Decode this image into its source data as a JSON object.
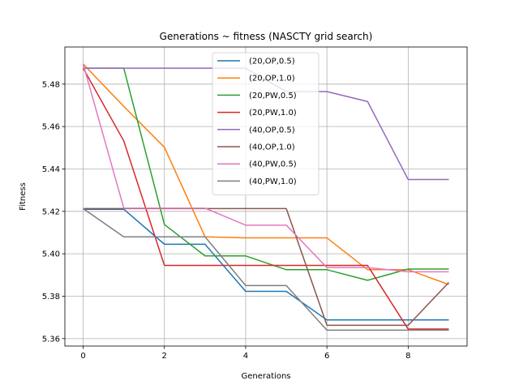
{
  "chart_data": {
    "type": "line",
    "title": "Generations ~ fitness (NASCTY grid search)",
    "xlabel": "Generations",
    "ylabel": "Fitness",
    "xlim": [
      -0.45,
      9.45
    ],
    "ylim": [
      5.3565,
      5.4975
    ],
    "xticks": [
      0,
      2,
      4,
      6,
      8
    ],
    "yticks": [
      5.36,
      5.38,
      5.4,
      5.42,
      5.44,
      5.46,
      5.48
    ],
    "ytick_labels": [
      "5.36",
      "5.38",
      "5.40",
      "5.42",
      "5.44",
      "5.46",
      "5.48"
    ],
    "grid": true,
    "legend_position": "top-center",
    "x": [
      0,
      1,
      2,
      3,
      4,
      5,
      6,
      7,
      8,
      9
    ],
    "series": [
      {
        "name": "(20,OP,0.5)",
        "color": "#1f77b4",
        "values": [
          5.421,
          5.421,
          5.4045,
          5.4045,
          5.3823,
          5.3823,
          5.3688,
          5.3688,
          5.3688,
          5.3688
        ]
      },
      {
        "name": "(20,OP,1.0)",
        "color": "#ff7f0e",
        "values": [
          5.4895,
          5.4695,
          5.4502,
          5.408,
          5.4075,
          5.4075,
          5.4075,
          5.3925,
          5.3925,
          5.3855
        ]
      },
      {
        "name": "(20,PW,0.5)",
        "color": "#2ca02c",
        "values": [
          5.4875,
          5.4875,
          5.4138,
          5.399,
          5.399,
          5.3925,
          5.3925,
          5.3875,
          5.3928,
          5.3928
        ]
      },
      {
        "name": "(20,PW,1.0)",
        "color": "#d62728",
        "values": [
          5.4875,
          5.4532,
          5.3945,
          5.3945,
          5.3945,
          5.3945,
          5.3945,
          5.3945,
          5.3645,
          5.3645
        ]
      },
      {
        "name": "(40,OP,0.5)",
        "color": "#9467bd",
        "values": [
          5.4875,
          5.4875,
          5.4875,
          5.4875,
          5.4875,
          5.4765,
          5.4765,
          5.4718,
          5.435,
          5.435
        ]
      },
      {
        "name": "(40,OP,1.0)",
        "color": "#8c564b",
        "values": [
          5.4213,
          5.4213,
          5.4213,
          5.4213,
          5.4213,
          5.4213,
          5.3663,
          5.3663,
          5.3663,
          5.3865
        ]
      },
      {
        "name": "(40,PW,0.5)",
        "color": "#e377c2",
        "values": [
          5.4895,
          5.4215,
          5.4215,
          5.4215,
          5.4135,
          5.4135,
          5.3935,
          5.3935,
          5.3915,
          5.3915
        ]
      },
      {
        "name": "(40,PW,1.0)",
        "color": "#7f7f7f",
        "values": [
          5.4213,
          5.408,
          5.408,
          5.408,
          5.385,
          5.385,
          5.364,
          5.364,
          5.364,
          5.364
        ]
      }
    ]
  }
}
